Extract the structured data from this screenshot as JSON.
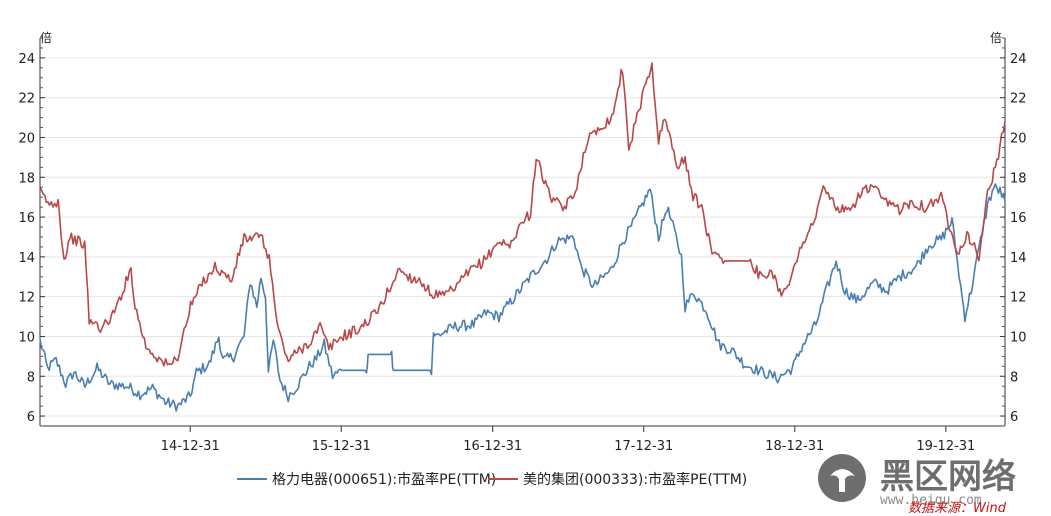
{
  "chart_data": {
    "type": "line",
    "title": "",
    "xlabel": "",
    "ylabel": "",
    "ylim": [
      5.5,
      25
    ],
    "xlim": [
      "2014-01-02",
      "2020-05-22"
    ],
    "y_unit_left": "倍",
    "y_unit_right": "倍",
    "y_ticks": [
      6,
      8,
      10,
      12,
      14,
      16,
      18,
      20,
      22,
      24
    ],
    "x_ticks": [
      {
        "date": "2014-12-31",
        "label": "14-12-31"
      },
      {
        "date": "2015-12-31",
        "label": "15-12-31"
      },
      {
        "date": "2016-12-31",
        "label": "16-12-31"
      },
      {
        "date": "2017-12-31",
        "label": "17-12-31"
      },
      {
        "date": "2018-12-31",
        "label": "18-12-31"
      },
      {
        "date": "2019-12-31",
        "label": "19-12-31"
      }
    ],
    "grid": {
      "horizontal": true,
      "vertical": false
    },
    "legend_position": "bottom-center",
    "series": [
      {
        "name": "格力电器(000651):市盈率PE(TTM)",
        "color": "#4a7eb0",
        "points": [
          [
            "2014-01-02",
            9.8
          ],
          [
            "2014-01-20",
            8.4
          ],
          [
            "2014-02-10",
            8.8
          ],
          [
            "2014-03-05",
            7.6
          ],
          [
            "2014-03-25",
            8.2
          ],
          [
            "2014-04-20",
            7.5
          ],
          [
            "2014-05-20",
            8.4
          ],
          [
            "2014-06-20",
            7.6
          ],
          [
            "2014-08-01",
            7.5
          ],
          [
            "2014-09-01",
            7.1
          ],
          [
            "2014-10-01",
            7.4
          ],
          [
            "2014-11-01",
            6.7
          ],
          [
            "2014-12-01",
            6.5
          ],
          [
            "2014-12-31",
            7.0
          ],
          [
            "2015-01-15",
            8.2
          ],
          [
            "2015-02-15",
            8.6
          ],
          [
            "2015-03-10",
            10.0
          ],
          [
            "2015-03-20",
            8.8
          ],
          [
            "2015-04-15",
            9.0
          ],
          [
            "2015-05-10",
            10.0
          ],
          [
            "2015-05-25",
            12.8
          ],
          [
            "2015-06-10",
            11.5
          ],
          [
            "2015-06-20",
            13.0
          ],
          [
            "2015-07-01",
            12.0
          ],
          [
            "2015-07-08",
            8.2
          ],
          [
            "2015-07-20",
            9.8
          ],
          [
            "2015-08-05",
            7.8
          ],
          [
            "2015-08-25",
            7.0
          ],
          [
            "2015-09-15",
            7.5
          ],
          [
            "2015-10-15",
            8.5
          ],
          [
            "2015-11-01",
            8.9
          ],
          [
            "2015-11-20",
            9.6
          ],
          [
            "2015-12-10",
            8.0
          ],
          [
            "2016-01-01",
            8.3
          ],
          [
            "2016-03-01",
            8.3
          ],
          [
            "2016-03-05",
            9.1
          ],
          [
            "2016-05-01",
            9.1
          ],
          [
            "2016-05-05",
            8.3
          ],
          [
            "2016-08-05",
            8.3
          ],
          [
            "2016-08-10",
            10.2
          ],
          [
            "2016-08-15",
            10.0
          ],
          [
            "2016-10-01",
            10.5
          ],
          [
            "2016-11-15",
            10.6
          ],
          [
            "2016-12-15",
            11.2
          ],
          [
            "2017-01-15",
            11.0
          ],
          [
            "2017-02-15",
            11.8
          ],
          [
            "2017-04-01",
            13.0
          ],
          [
            "2017-05-15",
            14.0
          ],
          [
            "2017-06-05",
            14.8
          ],
          [
            "2017-07-15",
            15.0
          ],
          [
            "2017-08-01",
            13.5
          ],
          [
            "2017-09-01",
            12.5
          ],
          [
            "2017-10-15",
            13.4
          ],
          [
            "2017-11-10",
            14.8
          ],
          [
            "2017-12-01",
            15.5
          ],
          [
            "2018-01-15",
            17.4
          ],
          [
            "2018-02-05",
            15.0
          ],
          [
            "2018-02-25",
            16.5
          ],
          [
            "2018-03-15",
            15.3
          ],
          [
            "2018-04-01",
            14.0
          ],
          [
            "2018-04-10",
            11.5
          ],
          [
            "2018-05-01",
            12.2
          ],
          [
            "2018-06-01",
            11.3
          ],
          [
            "2018-07-01",
            9.6
          ],
          [
            "2018-08-01",
            9.3
          ],
          [
            "2018-09-01",
            8.6
          ],
          [
            "2018-10-15",
            8.2
          ],
          [
            "2018-11-20",
            7.9
          ],
          [
            "2018-12-25",
            8.4
          ],
          [
            "2019-01-20",
            9.6
          ],
          [
            "2019-02-20",
            10.6
          ],
          [
            "2019-03-20",
            12.5
          ],
          [
            "2019-04-10",
            13.8
          ],
          [
            "2019-05-01",
            12.3
          ],
          [
            "2019-06-01",
            11.8
          ],
          [
            "2019-07-10",
            12.7
          ],
          [
            "2019-08-10",
            12.3
          ],
          [
            "2019-09-10",
            13.0
          ],
          [
            "2019-10-20",
            13.5
          ],
          [
            "2019-11-20",
            14.6
          ],
          [
            "2019-12-20",
            14.9
          ],
          [
            "2020-01-15",
            15.8
          ],
          [
            "2020-02-05",
            12.5
          ],
          [
            "2020-02-15",
            11.0
          ],
          [
            "2020-03-01",
            12.3
          ],
          [
            "2020-03-20",
            14.4
          ],
          [
            "2020-04-10",
            16.6
          ],
          [
            "2020-04-25",
            17.5
          ],
          [
            "2020-05-10",
            17.3
          ],
          [
            "2020-05-22",
            16.8
          ]
        ]
      },
      {
        "name": "美的集团(000333):市盈率PE(TTM)",
        "color": "#b84848",
        "points": [
          [
            "2014-01-02",
            17.3
          ],
          [
            "2014-01-25",
            16.6
          ],
          [
            "2014-02-15",
            16.8
          ],
          [
            "2014-03-01",
            13.8
          ],
          [
            "2014-03-15",
            15.0
          ],
          [
            "2014-04-20",
            14.6
          ],
          [
            "2014-05-01",
            10.8
          ],
          [
            "2014-06-01",
            10.4
          ],
          [
            "2014-07-01",
            11.2
          ],
          [
            "2014-08-10",
            13.4
          ],
          [
            "2014-08-20",
            11.5
          ],
          [
            "2014-09-15",
            9.5
          ],
          [
            "2014-10-20",
            8.8
          ],
          [
            "2014-11-10",
            8.5
          ],
          [
            "2014-12-01",
            9.0
          ],
          [
            "2015-01-01",
            11.5
          ],
          [
            "2015-02-01",
            12.8
          ],
          [
            "2015-03-01",
            13.5
          ],
          [
            "2015-04-10",
            12.8
          ],
          [
            "2015-05-10",
            15.0
          ],
          [
            "2015-06-01",
            14.8
          ],
          [
            "2015-06-15",
            15.2
          ],
          [
            "2015-07-10",
            14.0
          ],
          [
            "2015-07-25",
            11.2
          ],
          [
            "2015-08-05",
            10.0
          ],
          [
            "2015-08-25",
            8.8
          ],
          [
            "2015-09-20",
            9.3
          ],
          [
            "2015-10-15",
            9.7
          ],
          [
            "2015-11-10",
            10.5
          ],
          [
            "2015-12-01",
            9.4
          ],
          [
            "2016-01-01",
            10.0
          ],
          [
            "2016-02-15",
            10.4
          ],
          [
            "2016-04-01",
            11.4
          ],
          [
            "2016-05-20",
            13.4
          ],
          [
            "2016-06-10",
            13.0
          ],
          [
            "2016-07-10",
            12.8
          ],
          [
            "2016-08-01",
            12.2
          ],
          [
            "2016-09-01",
            12.0
          ],
          [
            "2016-10-01",
            12.4
          ],
          [
            "2016-11-01",
            13.2
          ],
          [
            "2016-12-10",
            13.8
          ],
          [
            "2017-01-15",
            14.8
          ],
          [
            "2017-02-10",
            14.5
          ],
          [
            "2017-03-01",
            15.4
          ],
          [
            "2017-04-01",
            16.2
          ],
          [
            "2017-04-15",
            19.0
          ],
          [
            "2017-05-15",
            17.2
          ],
          [
            "2017-06-15",
            16.4
          ],
          [
            "2017-07-15",
            17.0
          ],
          [
            "2017-08-15",
            19.8
          ],
          [
            "2017-09-15",
            20.5
          ],
          [
            "2017-10-15",
            21.0
          ],
          [
            "2017-11-10",
            23.5
          ],
          [
            "2017-11-25",
            19.5
          ],
          [
            "2017-12-15",
            21.0
          ],
          [
            "2018-01-05",
            22.8
          ],
          [
            "2018-01-20",
            23.6
          ],
          [
            "2018-02-05",
            19.8
          ],
          [
            "2018-02-20",
            21.0
          ],
          [
            "2018-03-10",
            19.5
          ],
          [
            "2018-03-25",
            18.5
          ],
          [
            "2018-04-10",
            19.0
          ],
          [
            "2018-04-25",
            17.2
          ],
          [
            "2018-05-20",
            16.5
          ],
          [
            "2018-06-10",
            14.5
          ],
          [
            "2018-07-15",
            13.8
          ],
          [
            "2018-09-15",
            13.8
          ],
          [
            "2018-10-15",
            12.8
          ],
          [
            "2018-11-05",
            13.4
          ],
          [
            "2018-11-25",
            12.2
          ],
          [
            "2018-12-10",
            12.5
          ],
          [
            "2019-01-01",
            13.5
          ],
          [
            "2019-01-20",
            14.8
          ],
          [
            "2019-02-20",
            16.0
          ],
          [
            "2019-03-10",
            17.5
          ],
          [
            "2019-04-10",
            16.5
          ],
          [
            "2019-05-10",
            16.2
          ],
          [
            "2019-06-10",
            17.3
          ],
          [
            "2019-07-10",
            17.5
          ],
          [
            "2019-08-01",
            16.8
          ],
          [
            "2019-09-10",
            16.4
          ],
          [
            "2019-10-10",
            16.8
          ],
          [
            "2019-11-10",
            16.5
          ],
          [
            "2019-12-20",
            17.0
          ],
          [
            "2020-01-10",
            15.5
          ],
          [
            "2020-02-01",
            14.2
          ],
          [
            "2020-02-20",
            15.2
          ],
          [
            "2020-03-20",
            14.0
          ],
          [
            "2020-04-10",
            17.2
          ],
          [
            "2020-04-25",
            18.2
          ],
          [
            "2020-05-10",
            19.5
          ],
          [
            "2020-05-22",
            20.8
          ]
        ]
      }
    ]
  },
  "source_note": "数据来源：Wind",
  "watermark": {
    "main": "黑区网络",
    "url": "www.heiqu.com"
  }
}
